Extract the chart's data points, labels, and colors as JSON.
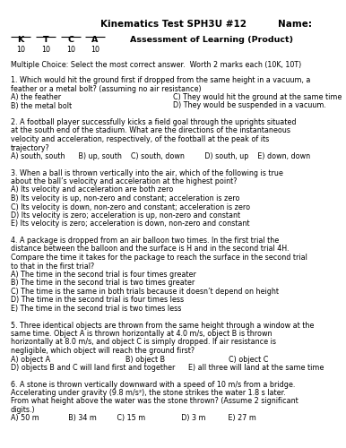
{
  "title": "Kinematics Test SPH3U #12",
  "name_label": "Name:",
  "assessment": "Assessment of Learning (Product)",
  "mc_header": "Multiple Choice: Select the most correct answer.  Worth 2 marks each (10K, 10T)",
  "score_items": [
    "K",
    "T",
    "C",
    "A"
  ],
  "score_denom": "10",
  "bg_color": "#ffffff",
  "text_color": "#000000",
  "title_fs": 7.5,
  "body_fs": 5.8,
  "bold_fs": 6.8,
  "questions": [
    {
      "num": "1.",
      "text": "Which would hit the ground first if dropped from the same height in a vacuum, a feather or a metal bolt? (assuming no air resistance)",
      "choices_2col": [
        [
          "A) the feather",
          "C) They would hit the ground at the same time"
        ],
        [
          "B) the metal bolt",
          "D) They would be suspended in a vacuum."
        ]
      ]
    },
    {
      "num": "2.",
      "text": "A football player successfully kicks a field goal through the uprights situated at the south end of the stadium. What are the directions of the instantaneous velocity and acceleration, respectively, of the football at the peak of its trajectory?",
      "choices_single": "A) south, south      B) up, south    C) south, down         D) south, up    E) down, down"
    },
    {
      "num": "3.",
      "text": "When a ball is thrown vertically into the air, which of the following is true about the ball’s velocity and acceleration at the highest point?",
      "choices_list": [
        "A) Its velocity and acceleration are both zero",
        "B) Its velocity is up, non-zero and constant; acceleration is zero",
        "C) Its velocity is down, non-zero and constant; acceleration is zero",
        "D) Its velocity is zero; acceleration is up, non-zero and constant",
        "E) Its velocity is zero; acceleration is down, non-zero and constant"
      ]
    },
    {
      "num": "4.",
      "text": "A package is dropped from an air balloon two times. In the first trial the distance between the balloon and the surface is H and in the second trial 4H. Compare the time it takes for the package to reach the surface in the second trial to that in the first trial?",
      "choices_list": [
        "A) The time in the second trial is four times greater",
        "B) The time in the second trial is two times greater",
        "C) The time is the same in both trials because it doesn’t depend on height",
        "D) The time in the second trial is four times less",
        "E) The time in the second trial is two times less"
      ]
    },
    {
      "num": "5.",
      "text": "Three identical objects are thrown from the same height through a window at the same time. Object A is thrown horizontally at 4.0 m/s, object B is thrown horizontally at 8.0 m/s, and object C is simply dropped. If air resistance is negligible, which object will reach the ground first?",
      "choices_mixed": [
        [
          "A) object A",
          "B) object B",
          "C) object C"
        ],
        [
          "D) objects B and C will land first and together",
          "E) all three will land at the same time"
        ]
      ]
    },
    {
      "num": "6.",
      "text": "A stone is thrown vertically downward with a speed of 10 m/s from a bridge. Accelerating under gravity (9.8 m/s²), the stone strikes the water 1.8 s later. From what height above the water was the stone thrown? (Assume 2 significant digits.)",
      "choices_single": "A) 50 m             B) 34 m         C) 15 m                D) 3 m          E) 27 m"
    }
  ]
}
